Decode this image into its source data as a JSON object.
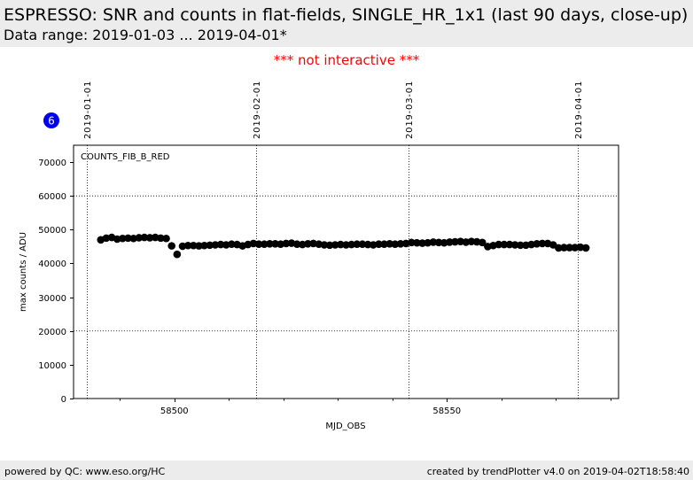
{
  "header": {
    "title": "ESPRESSO: SNR and counts in flat-fields, SINGLE_HR_1x1 (last 90 days, close-up)",
    "subtitle": "Data range: 2019-01-03 ... 2019-04-01*",
    "warning": "*** not interactive ***",
    "badge": "6"
  },
  "footer": {
    "left": "powered by QC: www.eso.org/HC",
    "right": "created by trendPlotter v4.0 on 2019-04-02T18:58:40"
  },
  "colors": {
    "marker": "#000000",
    "badge": "#0000ee",
    "warning": "#ff0000",
    "band": "#ececec"
  },
  "chart_data": {
    "type": "scatter",
    "panel_label": "COUNTS_FIB_B_RED",
    "xlabel": "MJD_OBS",
    "ylabel": "max counts / ADU",
    "xlim": [
      58481.5,
      58581.5
    ],
    "ylim": [
      0,
      75000
    ],
    "x_ticks": [
      58500,
      58550
    ],
    "x_tick_labels": [
      "58500",
      "58550"
    ],
    "y_ticks": [
      0,
      10000,
      20000,
      30000,
      40000,
      50000,
      60000,
      70000
    ],
    "y_tick_labels": [
      "0",
      "10000",
      "20000",
      "30000",
      "40000",
      "50000",
      "60000",
      "70000"
    ],
    "date_markers": [
      {
        "mjd": 58484,
        "label": "2019-01-01"
      },
      {
        "mjd": 58515,
        "label": "2019-02-01"
      },
      {
        "mjd": 58543,
        "label": "2019-03-01"
      },
      {
        "mjd": 58574,
        "label": "2019-04-01"
      }
    ],
    "grid_y": [
      20000,
      60000
    ],
    "series": [
      {
        "x": [
          58486.5,
          58487.5,
          58488.5,
          58489.5,
          58490.5,
          58491.5,
          58492.5,
          58493.5,
          58494.5,
          58495.5,
          58496.5,
          58497.5,
          58498.5,
          58499.5,
          58500.5,
          58501.5,
          58502.5,
          58503.5,
          58504.5,
          58505.5,
          58506.5,
          58507.5,
          58508.5,
          58509.5,
          58510.5,
          58511.5,
          58512.5,
          58513.5,
          58514.5,
          58515.5,
          58516.5,
          58517.5,
          58518.5,
          58519.5,
          58520.5,
          58521.5,
          58522.5,
          58523.5,
          58524.5,
          58525.5,
          58526.5,
          58527.5,
          58528.5,
          58529.5,
          58530.5,
          58531.5,
          58532.5,
          58533.5,
          58534.5,
          58535.5,
          58536.5,
          58537.5,
          58538.5,
          58539.5,
          58540.5,
          58541.5,
          58542.5,
          58543.5,
          58544.5,
          58545.5,
          58546.5,
          58547.5,
          58548.5,
          58549.5,
          58550.5,
          58551.5,
          58552.5,
          58553.5,
          58554.5,
          58555.5,
          58556.5,
          58557.5,
          58558.5,
          58559.5,
          58560.5,
          58561.5,
          58562.5,
          58563.5,
          58564.5,
          58565.5,
          58566.5,
          58567.5,
          58568.5,
          58569.5,
          58570.5,
          58571.5,
          58572.5,
          58573.5,
          58574.5,
          58575.5
        ],
        "y": [
          47000,
          47500,
          47700,
          47200,
          47400,
          47500,
          47400,
          47600,
          47700,
          47600,
          47700,
          47500,
          47400,
          45200,
          42700,
          45100,
          45300,
          45300,
          45200,
          45300,
          45400,
          45500,
          45600,
          45500,
          45700,
          45600,
          45200,
          45600,
          45900,
          45700,
          45700,
          45800,
          45800,
          45700,
          45900,
          46000,
          45700,
          45600,
          45800,
          45900,
          45700,
          45500,
          45400,
          45500,
          45600,
          45500,
          45600,
          45700,
          45700,
          45600,
          45500,
          45700,
          45700,
          45800,
          45700,
          45800,
          45900,
          46200,
          46100,
          46000,
          46100,
          46300,
          46200,
          46100,
          46300,
          46400,
          46500,
          46300,
          46500,
          46400,
          46200,
          45000,
          45300,
          45600,
          45600,
          45600,
          45500,
          45400,
          45400,
          45600,
          45800,
          45900,
          45900,
          45500,
          44600,
          44700,
          44700,
          44700,
          44800,
          44600
        ]
      }
    ]
  }
}
